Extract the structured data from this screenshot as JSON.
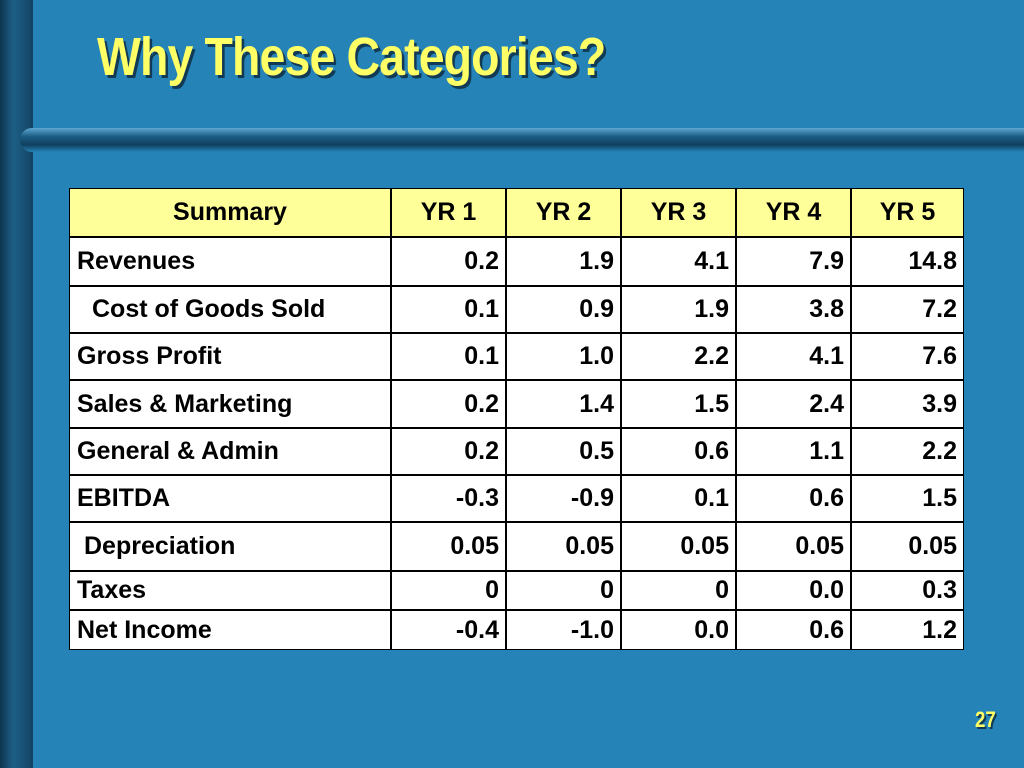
{
  "slide": {
    "title": "Why These Categories?",
    "page_number": "27",
    "colors": {
      "background": "#2583b7",
      "title": "#ffff66",
      "table_header": "#ffff99"
    }
  },
  "table": {
    "headers": [
      "Summary",
      "YR 1",
      "YR 2",
      "YR 3",
      "YR 4",
      "YR 5"
    ],
    "rows": [
      {
        "label": "Revenues",
        "values": [
          "0.2",
          "1.9",
          "4.1",
          "7.9",
          "14.8"
        ]
      },
      {
        "label": "Cost of Goods Sold",
        "values": [
          "0.1",
          "0.9",
          "1.9",
          "3.8",
          "7.2"
        ]
      },
      {
        "label": "Gross Profit",
        "values": [
          "0.1",
          "1.0",
          "2.2",
          "4.1",
          "7.6"
        ]
      },
      {
        "label": "Sales & Marketing",
        "values": [
          "0.2",
          "1.4",
          "1.5",
          "2.4",
          "3.9"
        ]
      },
      {
        "label": "General & Admin",
        "values": [
          "0.2",
          "0.5",
          "0.6",
          "1.1",
          "2.2"
        ]
      },
      {
        "label": "EBITDA",
        "values": [
          "-0.3",
          "-0.9",
          "0.1",
          "0.6",
          "1.5"
        ]
      },
      {
        "label": "Depreciation",
        "values": [
          "0.05",
          "0.05",
          "0.05",
          "0.05",
          "0.05"
        ]
      },
      {
        "label": "Taxes",
        "values": [
          "0",
          "0",
          "0",
          "0.0",
          "0.3"
        ]
      },
      {
        "label": "Net Income",
        "values": [
          "-0.4",
          "-1.0",
          "0.0",
          "0.6",
          "1.2"
        ]
      }
    ]
  }
}
